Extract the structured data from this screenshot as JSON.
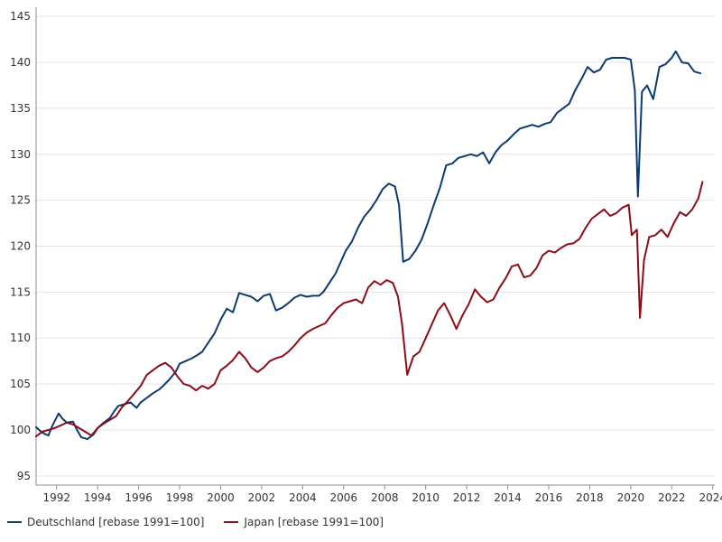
{
  "chart_data": {
    "type": "line",
    "title": "",
    "xlabel": "",
    "ylabel": "",
    "xlim": [
      1991.0,
      2024.1
    ],
    "ylim": [
      94,
      146
    ],
    "grid": true,
    "legend_position": "bottom-left",
    "x_ticks": [
      "1992",
      "1994",
      "1996",
      "1998",
      "2000",
      "2002",
      "2004",
      "2006",
      "2008",
      "2010",
      "2012",
      "2014",
      "2016",
      "2018",
      "2020",
      "2022",
      "2024"
    ],
    "y_ticks": [
      "95",
      "100",
      "105",
      "110",
      "115",
      "120",
      "125",
      "130",
      "135",
      "140",
      "145"
    ],
    "series": [
      {
        "name": "Deutschland [rebase 1991=100]",
        "color": "#0b3a73",
        "points": [
          [
            1991.0,
            100.3
          ],
          [
            1991.3,
            99.7
          ],
          [
            1991.6,
            99.4
          ],
          [
            1991.8,
            100.5
          ],
          [
            1992.1,
            101.8
          ],
          [
            1992.3,
            101.2
          ],
          [
            1992.5,
            100.8
          ],
          [
            1992.8,
            100.9
          ],
          [
            1993.0,
            100.0
          ],
          [
            1993.2,
            99.2
          ],
          [
            1993.5,
            99.0
          ],
          [
            1993.8,
            99.5
          ],
          [
            1994.0,
            100.2
          ],
          [
            1994.3,
            100.8
          ],
          [
            1994.6,
            101.3
          ],
          [
            1994.8,
            102.0
          ],
          [
            1995.0,
            102.6
          ],
          [
            1995.3,
            102.8
          ],
          [
            1995.6,
            103.0
          ],
          [
            1995.9,
            102.4
          ],
          [
            1996.1,
            103.0
          ],
          [
            1996.4,
            103.5
          ],
          [
            1996.7,
            104.0
          ],
          [
            1997.0,
            104.4
          ],
          [
            1997.2,
            104.8
          ],
          [
            1997.5,
            105.5
          ],
          [
            1997.8,
            106.3
          ],
          [
            1998.0,
            107.2
          ],
          [
            1998.3,
            107.5
          ],
          [
            1998.6,
            107.8
          ],
          [
            1998.9,
            108.2
          ],
          [
            1999.1,
            108.5
          ],
          [
            1999.4,
            109.5
          ],
          [
            1999.7,
            110.5
          ],
          [
            2000.0,
            112.0
          ],
          [
            2000.3,
            113.2
          ],
          [
            2000.6,
            112.8
          ],
          [
            2000.9,
            114.9
          ],
          [
            2001.2,
            114.7
          ],
          [
            2001.5,
            114.5
          ],
          [
            2001.8,
            114.0
          ],
          [
            2002.1,
            114.6
          ],
          [
            2002.4,
            114.8
          ],
          [
            2002.7,
            113.0
          ],
          [
            2003.0,
            113.3
          ],
          [
            2003.3,
            113.8
          ],
          [
            2003.6,
            114.4
          ],
          [
            2003.9,
            114.7
          ],
          [
            2004.2,
            114.5
          ],
          [
            2004.5,
            114.6
          ],
          [
            2004.8,
            114.6
          ],
          [
            2005.0,
            115.0
          ],
          [
            2005.3,
            116.0
          ],
          [
            2005.6,
            117.0
          ],
          [
            2005.9,
            118.5
          ],
          [
            2006.1,
            119.5
          ],
          [
            2006.4,
            120.5
          ],
          [
            2006.7,
            122.0
          ],
          [
            2007.0,
            123.2
          ],
          [
            2007.3,
            124.0
          ],
          [
            2007.6,
            125.0
          ],
          [
            2007.9,
            126.2
          ],
          [
            2008.2,
            126.8
          ],
          [
            2008.5,
            126.5
          ],
          [
            2008.7,
            124.5
          ],
          [
            2008.9,
            118.3
          ],
          [
            2009.2,
            118.6
          ],
          [
            2009.5,
            119.5
          ],
          [
            2009.8,
            120.7
          ],
          [
            2010.1,
            122.5
          ],
          [
            2010.4,
            124.5
          ],
          [
            2010.7,
            126.4
          ],
          [
            2011.0,
            128.8
          ],
          [
            2011.3,
            129.0
          ],
          [
            2011.6,
            129.6
          ],
          [
            2011.9,
            129.8
          ],
          [
            2012.2,
            130.0
          ],
          [
            2012.5,
            129.8
          ],
          [
            2012.8,
            130.2
          ],
          [
            2013.1,
            129.0
          ],
          [
            2013.4,
            130.2
          ],
          [
            2013.7,
            131.0
          ],
          [
            2014.0,
            131.5
          ],
          [
            2014.3,
            132.2
          ],
          [
            2014.6,
            132.8
          ],
          [
            2014.9,
            133.0
          ],
          [
            2015.2,
            133.2
          ],
          [
            2015.5,
            133.0
          ],
          [
            2015.8,
            133.3
          ],
          [
            2016.1,
            133.5
          ],
          [
            2016.4,
            134.5
          ],
          [
            2016.7,
            135.0
          ],
          [
            2017.0,
            135.5
          ],
          [
            2017.3,
            137.0
          ],
          [
            2017.6,
            138.2
          ],
          [
            2017.9,
            139.5
          ],
          [
            2018.2,
            138.9
          ],
          [
            2018.5,
            139.2
          ],
          [
            2018.8,
            140.3
          ],
          [
            2019.1,
            140.5
          ],
          [
            2019.4,
            140.5
          ],
          [
            2019.7,
            140.5
          ],
          [
            2020.0,
            140.3
          ],
          [
            2020.2,
            137.0
          ],
          [
            2020.35,
            125.4
          ],
          [
            2020.55,
            136.8
          ],
          [
            2020.8,
            137.5
          ],
          [
            2021.1,
            136.0
          ],
          [
            2021.4,
            139.5
          ],
          [
            2021.7,
            139.8
          ],
          [
            2022.0,
            140.5
          ],
          [
            2022.2,
            141.2
          ],
          [
            2022.5,
            140.0
          ],
          [
            2022.8,
            139.9
          ],
          [
            2023.1,
            139.0
          ],
          [
            2023.4,
            138.8
          ]
        ]
      },
      {
        "name": "Japan [rebase 1991=100]",
        "color": "#8b0d17",
        "points": [
          [
            1991.0,
            99.3
          ],
          [
            1991.3,
            99.8
          ],
          [
            1991.6,
            100.0
          ],
          [
            1991.9,
            100.2
          ],
          [
            1992.2,
            100.5
          ],
          [
            1992.5,
            100.8
          ],
          [
            1992.8,
            100.6
          ],
          [
            1993.1,
            100.2
          ],
          [
            1993.4,
            99.8
          ],
          [
            1993.7,
            99.4
          ],
          [
            1994.0,
            100.2
          ],
          [
            1994.3,
            100.7
          ],
          [
            1994.6,
            101.1
          ],
          [
            1994.9,
            101.5
          ],
          [
            1995.2,
            102.5
          ],
          [
            1995.5,
            103.2
          ],
          [
            1995.8,
            104.0
          ],
          [
            1996.1,
            104.8
          ],
          [
            1996.4,
            106.0
          ],
          [
            1996.7,
            106.5
          ],
          [
            1997.0,
            107.0
          ],
          [
            1997.3,
            107.3
          ],
          [
            1997.6,
            106.8
          ],
          [
            1997.9,
            105.8
          ],
          [
            1998.2,
            105.0
          ],
          [
            1998.5,
            104.8
          ],
          [
            1998.8,
            104.3
          ],
          [
            1999.1,
            104.8
          ],
          [
            1999.4,
            104.5
          ],
          [
            1999.7,
            105.0
          ],
          [
            2000.0,
            106.5
          ],
          [
            2000.3,
            107.0
          ],
          [
            2000.6,
            107.6
          ],
          [
            2000.9,
            108.5
          ],
          [
            2001.2,
            107.8
          ],
          [
            2001.5,
            106.8
          ],
          [
            2001.8,
            106.3
          ],
          [
            2002.1,
            106.8
          ],
          [
            2002.4,
            107.5
          ],
          [
            2002.7,
            107.8
          ],
          [
            2003.0,
            108.0
          ],
          [
            2003.3,
            108.5
          ],
          [
            2003.6,
            109.2
          ],
          [
            2003.9,
            110.0
          ],
          [
            2004.2,
            110.6
          ],
          [
            2004.5,
            111.0
          ],
          [
            2004.8,
            111.3
          ],
          [
            2005.1,
            111.6
          ],
          [
            2005.4,
            112.5
          ],
          [
            2005.7,
            113.3
          ],
          [
            2006.0,
            113.8
          ],
          [
            2006.3,
            114.0
          ],
          [
            2006.6,
            114.2
          ],
          [
            2006.9,
            113.8
          ],
          [
            2007.2,
            115.5
          ],
          [
            2007.5,
            116.2
          ],
          [
            2007.8,
            115.8
          ],
          [
            2008.1,
            116.3
          ],
          [
            2008.4,
            116.0
          ],
          [
            2008.65,
            114.5
          ],
          [
            2008.85,
            111.5
          ],
          [
            2009.1,
            106.0
          ],
          [
            2009.4,
            108.0
          ],
          [
            2009.7,
            108.5
          ],
          [
            2010.0,
            110.0
          ],
          [
            2010.3,
            111.5
          ],
          [
            2010.6,
            113.0
          ],
          [
            2010.9,
            113.8
          ],
          [
            2011.2,
            112.5
          ],
          [
            2011.5,
            111.0
          ],
          [
            2011.8,
            112.5
          ],
          [
            2012.1,
            113.7
          ],
          [
            2012.4,
            115.3
          ],
          [
            2012.7,
            114.5
          ],
          [
            2013.0,
            113.9
          ],
          [
            2013.3,
            114.2
          ],
          [
            2013.6,
            115.5
          ],
          [
            2013.9,
            116.5
          ],
          [
            2014.2,
            117.8
          ],
          [
            2014.5,
            118.0
          ],
          [
            2014.8,
            116.6
          ],
          [
            2015.1,
            116.8
          ],
          [
            2015.4,
            117.6
          ],
          [
            2015.7,
            119.0
          ],
          [
            2016.0,
            119.5
          ],
          [
            2016.3,
            119.3
          ],
          [
            2016.6,
            119.8
          ],
          [
            2016.9,
            120.2
          ],
          [
            2017.2,
            120.3
          ],
          [
            2017.5,
            120.8
          ],
          [
            2017.8,
            122.0
          ],
          [
            2018.1,
            123.0
          ],
          [
            2018.4,
            123.5
          ],
          [
            2018.7,
            124.0
          ],
          [
            2019.0,
            123.3
          ],
          [
            2019.3,
            123.6
          ],
          [
            2019.6,
            124.2
          ],
          [
            2019.9,
            124.5
          ],
          [
            2020.05,
            121.2
          ],
          [
            2020.3,
            121.8
          ],
          [
            2020.45,
            112.2
          ],
          [
            2020.65,
            118.5
          ],
          [
            2020.9,
            121.0
          ],
          [
            2021.2,
            121.2
          ],
          [
            2021.5,
            121.8
          ],
          [
            2021.8,
            121.0
          ],
          [
            2022.1,
            122.5
          ],
          [
            2022.4,
            123.7
          ],
          [
            2022.7,
            123.3
          ],
          [
            2023.0,
            124.0
          ],
          [
            2023.3,
            125.2
          ],
          [
            2023.5,
            127.0
          ]
        ]
      }
    ]
  }
}
